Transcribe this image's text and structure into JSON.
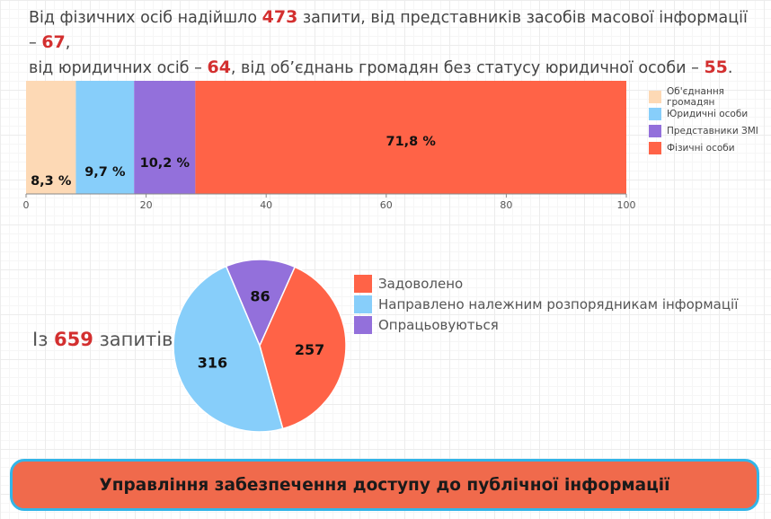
{
  "intro": {
    "p1": "Від фізичних осіб надійшло ",
    "n1": "473",
    "p2": " запити, від представників засобів масової інформації –  ",
    "n2": "67",
    "p3": ",",
    "p4": "від юридичних осіб – ",
    "n3": "64",
    "p5": ", від об’єднань громадян без статусу юридичної особи – ",
    "n4": "55",
    "p6": "."
  },
  "chart_data": [
    {
      "type": "bar",
      "orientation": "horizontal-stacked",
      "series": [
        {
          "name": "Об'єднання громадян",
          "value": 8.3,
          "label": "8,3 %",
          "color": "#fdd9b5"
        },
        {
          "name": "Юридичні особи",
          "value": 9.7,
          "label": "9,7 %",
          "color": "#87cefa"
        },
        {
          "name": "Представники ЗМІ",
          "value": 10.2,
          "label": "10,2 %",
          "color": "#9370db"
        },
        {
          "name": "Фізичні особи",
          "value": 71.8,
          "label": "71,8 %",
          "color": "#ff6347"
        }
      ],
      "xlim": [
        0,
        100
      ],
      "xticks": [
        "0",
        "20",
        "40",
        "60",
        "80",
        "100"
      ],
      "legend_position": "right",
      "legend_order": [
        "Об'єднання громадян",
        "Юридичні особи",
        "Представники ЗМІ",
        "Фізичні особи"
      ]
    },
    {
      "type": "pie",
      "slices": [
        {
          "name": "Задоволено",
          "value": 257,
          "label": "257",
          "color": "#ff6347"
        },
        {
          "name": "Направлено належним розпорядникам інформації",
          "value": 316,
          "label": "316",
          "color": "#87cefa"
        },
        {
          "name": "Опрацьовуються",
          "value": 86,
          "label": "86",
          "color": "#9370db"
        }
      ],
      "legend_position": "right"
    }
  ],
  "total": {
    "prefix": "Із ",
    "value": "659",
    "suffix": " запитів"
  },
  "footer": {
    "label": "Управління забезпечення доступу до публічної інформації"
  }
}
